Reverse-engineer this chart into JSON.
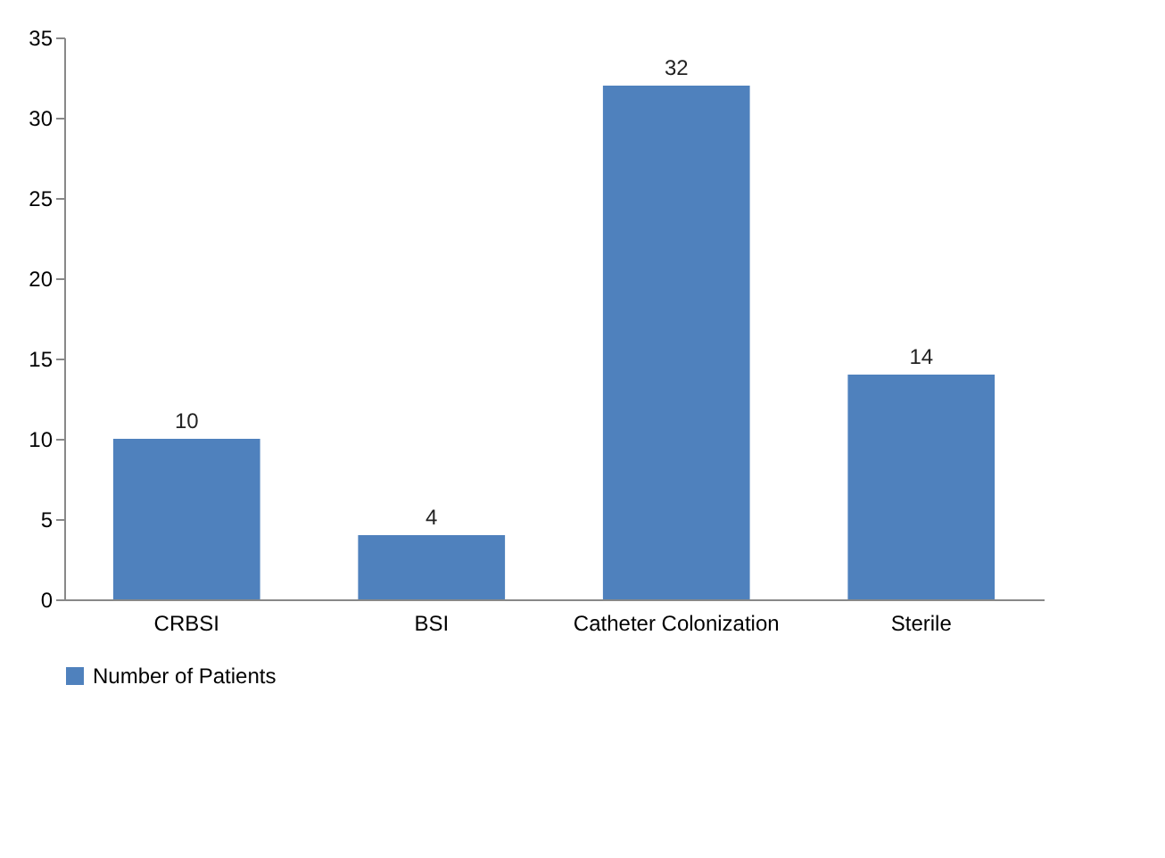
{
  "chart_data": {
    "type": "bar",
    "categories": [
      "CRBSI",
      "BSI",
      "Catheter Colonization",
      "Sterile"
    ],
    "series": [
      {
        "name": "Number of Patients",
        "color": "#4f81bd",
        "values": [
          10,
          4,
          32,
          14
        ]
      }
    ],
    "ylim": [
      0,
      35
    ],
    "yticks": [
      0,
      5,
      10,
      15,
      20,
      25,
      30,
      35
    ],
    "data_labels": true,
    "grid": false,
    "legend": "bottom"
  }
}
